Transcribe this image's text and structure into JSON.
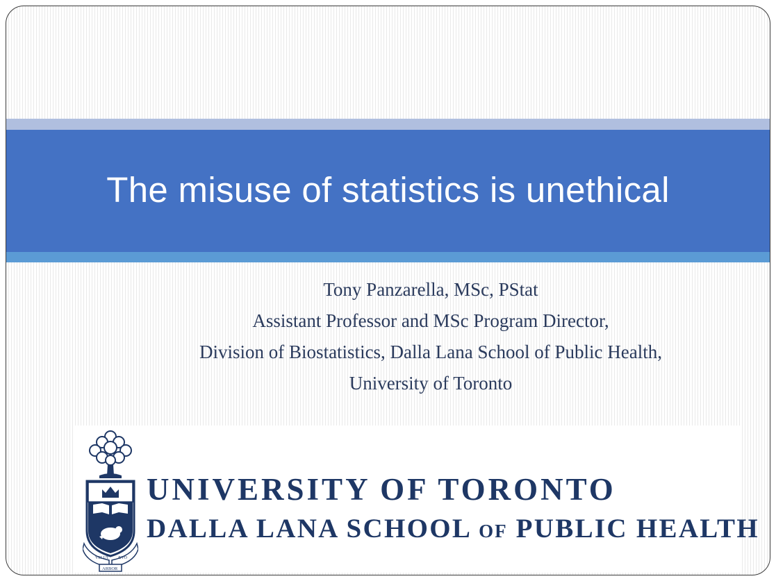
{
  "slide": {
    "title": "The misuse of statistics is unethical",
    "subtitle_lines": [
      "Tony Panzarella, MSc, PStat",
      "Assistant Professor and MSc Program Director,",
      "Division of Biostatistics, Dalla Lana School of Public Health,",
      "University of Toronto"
    ]
  },
  "logo": {
    "line1": "UNIVERSITY OF TORONTO",
    "line2_part1": "DALLA LANA SCHOOL",
    "line2_of": "OF",
    "line2_part2": "PUBLIC HEALTH",
    "crest_motto_left": "VELUT",
    "crest_motto_right": "ÆVO",
    "crest_scroll": "ARBOR"
  },
  "colors": {
    "title_band": "#4472c4",
    "band_top": "#b0bfdf",
    "band_bottom": "#5b9bd5",
    "subtitle_text": "#2a3a5c",
    "brand_navy": "#1e3765"
  }
}
